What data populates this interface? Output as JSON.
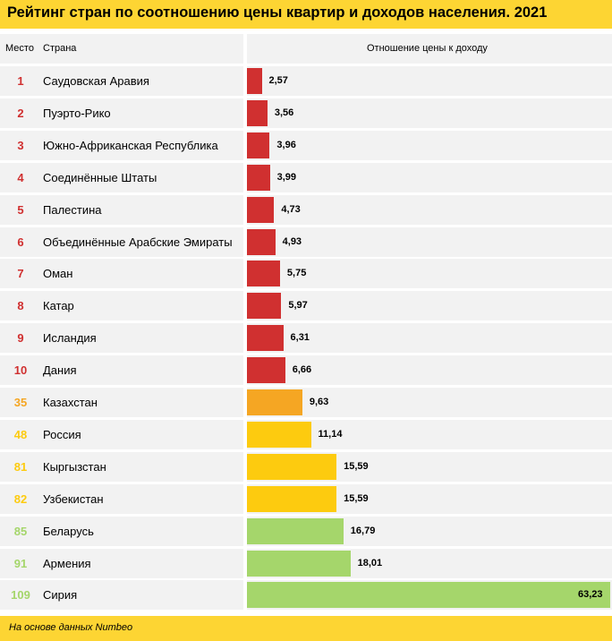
{
  "title": "Рейтинг стран по соотношению цены квартир и доходов населения. 2021",
  "headers": {
    "rank": "Место",
    "country": "Страна",
    "ratio": "Отношение цены к доходу"
  },
  "footer_note": "На основе данных Numbeo",
  "colors": {
    "title_bg": "#fdd533",
    "row_bg": "#f2f2f2",
    "red": "#d03030",
    "orange": "#f5a623",
    "yellow": "#fdcb0f",
    "green": "#a5d66b"
  },
  "chart_data": {
    "type": "bar",
    "orientation": "horizontal",
    "title": "Рейтинг стран по соотношению цены квартир и доходов населения. 2021",
    "ylabel": "Отношение цены к доходу",
    "rows": [
      {
        "rank": "1",
        "country": "Саудовская Аравия",
        "value": 2.57,
        "label": "2,57",
        "color": "red"
      },
      {
        "rank": "2",
        "country": "Пуэрто-Рико",
        "value": 3.56,
        "label": "3,56",
        "color": "red"
      },
      {
        "rank": "3",
        "country": "Южно-Африканская Республика",
        "value": 3.96,
        "label": "3,96",
        "color": "red"
      },
      {
        "rank": "4",
        "country": "Соединённые Штаты",
        "value": 3.99,
        "label": "3,99",
        "color": "red"
      },
      {
        "rank": "5",
        "country": "Палестина",
        "value": 4.73,
        "label": "4,73",
        "color": "red"
      },
      {
        "rank": "6",
        "country": "Объединённые Арабские Эмираты",
        "value": 4.93,
        "label": "4,93",
        "color": "red"
      },
      {
        "rank": "7",
        "country": "Оман",
        "value": 5.75,
        "label": "5,75",
        "color": "red"
      },
      {
        "rank": "8",
        "country": "Катар",
        "value": 5.97,
        "label": "5,97",
        "color": "red"
      },
      {
        "rank": "9",
        "country": "Исландия",
        "value": 6.31,
        "label": "6,31",
        "color": "red"
      },
      {
        "rank": "10",
        "country": "Дания",
        "value": 6.66,
        "label": "6,66",
        "color": "red"
      },
      {
        "rank": "35",
        "country": "Казахстан",
        "value": 9.63,
        "label": "9,63",
        "color": "orange"
      },
      {
        "rank": "48",
        "country": "Россия",
        "value": 11.14,
        "label": "11,14",
        "color": "yellow"
      },
      {
        "rank": "81",
        "country": "Кыргызстан",
        "value": 15.59,
        "label": "15,59",
        "color": "yellow"
      },
      {
        "rank": "82",
        "country": "Узбекистан",
        "value": 15.59,
        "label": "15,59",
        "color": "yellow"
      },
      {
        "rank": "85",
        "country": "Беларусь",
        "value": 16.79,
        "label": "16,79",
        "color": "green"
      },
      {
        "rank": "91",
        "country": "Армения",
        "value": 18.01,
        "label": "18,01",
        "color": "green"
      },
      {
        "rank": "109",
        "country": "Сирия",
        "value": 63.23,
        "label": "63,23",
        "color": "green"
      }
    ],
    "xlim": [
      0,
      63.23
    ]
  }
}
